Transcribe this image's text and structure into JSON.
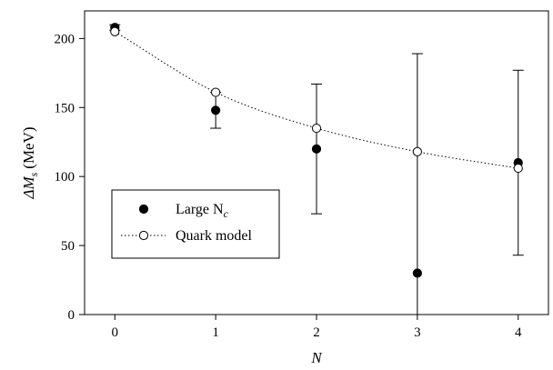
{
  "chart_data": {
    "type": "scatter",
    "xlabel": "N",
    "ylabel": {
      "main": "ΔM",
      "sub": "s",
      "unit": "(MeV)"
    },
    "xlim": [
      -0.3,
      4.3
    ],
    "ylim": [
      0,
      220
    ],
    "xticks": [
      0,
      1,
      2,
      3,
      4
    ],
    "yticks": [
      0,
      50,
      100,
      150,
      200
    ],
    "grid": false,
    "legend_position": "center-left",
    "series": [
      {
        "name": {
          "main": "Large N",
          "sub": "c"
        },
        "marker": "filled-circle",
        "color": "#000000",
        "points": [
          {
            "x": 0,
            "y": 208,
            "low": 206,
            "high": 210
          },
          {
            "x": 1,
            "y": 148,
            "low": 135,
            "high": 161
          },
          {
            "x": 2,
            "y": 120,
            "low": 73,
            "high": 167
          },
          {
            "x": 3,
            "y": 30,
            "low": 0,
            "high": 189
          },
          {
            "x": 4,
            "y": 110,
            "low": 43,
            "high": 177
          }
        ]
      },
      {
        "name": {
          "main": "Quark model",
          "sub": ""
        },
        "marker": "open-circle",
        "line": "dotted",
        "color": "#000000",
        "points": [
          {
            "x": 0,
            "y": 205
          },
          {
            "x": 1,
            "y": 161
          },
          {
            "x": 2,
            "y": 135
          },
          {
            "x": 3,
            "y": 118
          },
          {
            "x": 4,
            "y": 106
          }
        ]
      }
    ]
  }
}
